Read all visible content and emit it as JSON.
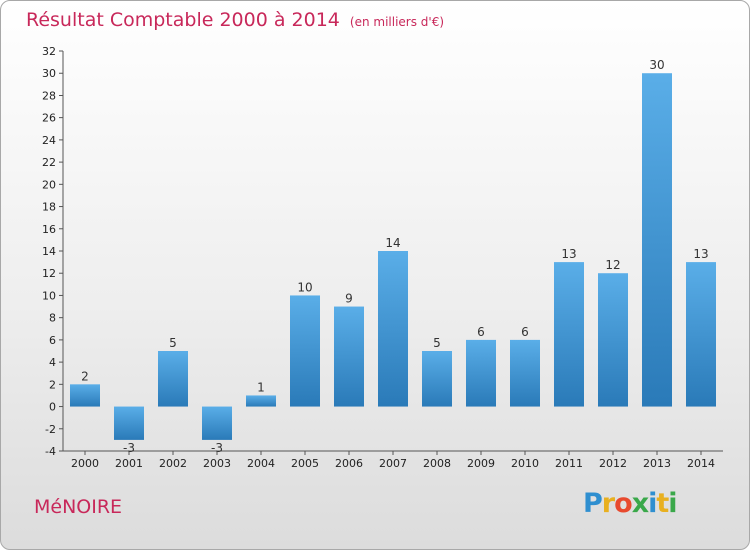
{
  "header": {
    "title": "Résultat Comptable 2000 à 2014",
    "subtitle": "(en milliers d'€)"
  },
  "footer": {
    "commune": "MéNOIRE",
    "logo_letters": [
      "P",
      "r",
      "o",
      "x",
      "i",
      "t",
      "i"
    ]
  },
  "colors": {
    "title": "#c8285a",
    "bar_top": "#5aaee8",
    "bar_bottom": "#2a7ab8",
    "axis": "#555555",
    "logo": [
      "#2f8fd0",
      "#e8b020",
      "#e84a2e",
      "#3aa84a",
      "#2f8fd0",
      "#e8b020",
      "#3aa84a"
    ]
  },
  "chart_data": {
    "type": "bar",
    "title": "Résultat Comptable 2000 à 2014",
    "subtitle": "(en milliers d'€)",
    "categories": [
      "2000",
      "2001",
      "2002",
      "2003",
      "2004",
      "2005",
      "2006",
      "2007",
      "2008",
      "2009",
      "2010",
      "2011",
      "2012",
      "2013",
      "2014"
    ],
    "values": [
      2,
      -3,
      5,
      -3,
      1,
      10,
      9,
      14,
      5,
      6,
      6,
      13,
      12,
      30,
      13
    ],
    "ylim": [
      -4,
      32
    ],
    "yticks": [
      -4,
      -2,
      0,
      2,
      4,
      6,
      8,
      10,
      12,
      14,
      16,
      18,
      20,
      22,
      24,
      26,
      28,
      30,
      32
    ],
    "xlabel": "",
    "ylabel": "",
    "grid": false,
    "legend": "none"
  }
}
